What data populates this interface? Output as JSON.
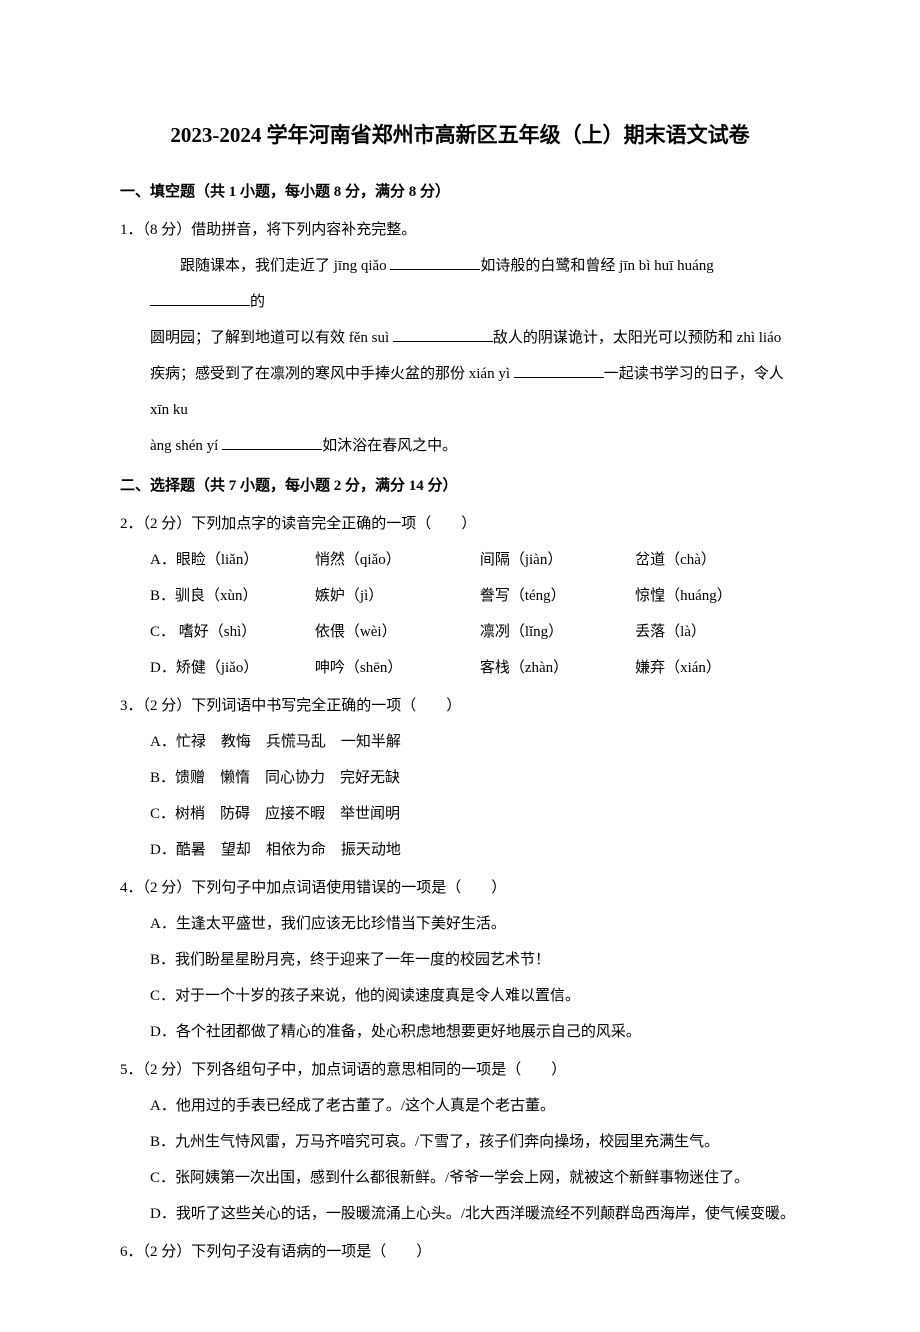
{
  "title": "2023-2024 学年河南省郑州市高新区五年级（上）期末语文试卷",
  "section1": {
    "header": "一、填空题（共 1 小题，每小题 8 分，满分 8 分）",
    "q1": {
      "stem": "1．（8 分）借助拼音，将下列内容补充完整。",
      "line1a": "跟随课本，我们走近了 jīng qiǎo ",
      "line1b": "如诗般的白鹭和曾经 jīn bì huī huáng ",
      "line1c": "的",
      "line2a": "圆明园；了解到地道可以有效 fěn suì  ",
      "line2b": "敌人的阴谋诡计，太阳光可以预防和 zhì liáo",
      "line3a": "疾病；感受到了在凛冽的寒风中手捧火盆的那份 xián yì  ",
      "line3b": "一起读书学习的日子，令人 xīn ku",
      "line4a": "àng shén yí  ",
      "line4b": "如沐浴在春风之中。"
    }
  },
  "section2": {
    "header": "二、选择题（共 7 小题，每小题 2 分，满分 14 分）",
    "q2": {
      "stem": "2．（2 分）下列加点字的读音完全正确的一项（　　）",
      "rowA": {
        "c1": "A．眼睑（liǎn）",
        "c2": "悄然（qiǎo）",
        "c3": "间隔（jiàn）",
        "c4": "岔道（chà）"
      },
      "rowB": {
        "c1": "B．驯良（xùn）",
        "c2": "嫉妒（jì）",
        "c3": "誊写（téng）",
        "c4": "惊惶（huáng）"
      },
      "rowC": {
        "c1": "C．  嗜好（shì）",
        "c2": "依偎（wèi）",
        "c3": "凛冽（lǐng）",
        "c4": "丢落（là）"
      },
      "rowD": {
        "c1": "D．矫健（jiǎo）",
        "c2": "呻吟（shēn）",
        "c3": "客栈（zhàn）",
        "c4": "嫌弃（xián）"
      }
    },
    "q3": {
      "stem": "3．（2 分）下列词语中书写完全正确的一项（　　）",
      "A": "A．忙禄　教悔　兵慌马乱　一知半解",
      "B": "B．馈赠　懒惰　同心协力　完好无缺",
      "C": "C．树梢　防碍　应接不暇　举世闻明",
      "D": "D．酷暑　望却　相依为命　振天动地"
    },
    "q4": {
      "stem": "4．（2 分）下列句子中加点词语使用错误的一项是（　　）",
      "A": "A．生逢太平盛世，我们应该无比珍惜当下美好生活。",
      "B": "B．我们盼星星盼月亮，终于迎来了一年一度的校园艺术节！",
      "C": "C．对于一个十岁的孩子来说，他的阅读速度真是令人难以置信。",
      "D": "D．各个社团都做了精心的准备，处心积虑地想要更好地展示自己的风采。"
    },
    "q5": {
      "stem": "5．（2 分）下列各组句子中，加点词语的意思相同的一项是（　　）",
      "A": "A．他用过的手表已经成了老古董了。/这个人真是个老古董。",
      "B": "B．九州生气恃风雷，万马齐喑究可哀。/下雪了，孩子们奔向操场，校园里充满生气。",
      "C": "C．张阿姨第一次出国，感到什么都很新鲜。/爷爷一学会上网，就被这个新鲜事物迷住了。",
      "D": "D．我听了这些关心的话，一股暖流涌上心头。/北大西洋暖流经不列颠群岛西海岸，使气候变暖。"
    },
    "q6": {
      "stem": "6．（2 分）下列句子没有语病的一项是（　　）"
    }
  }
}
